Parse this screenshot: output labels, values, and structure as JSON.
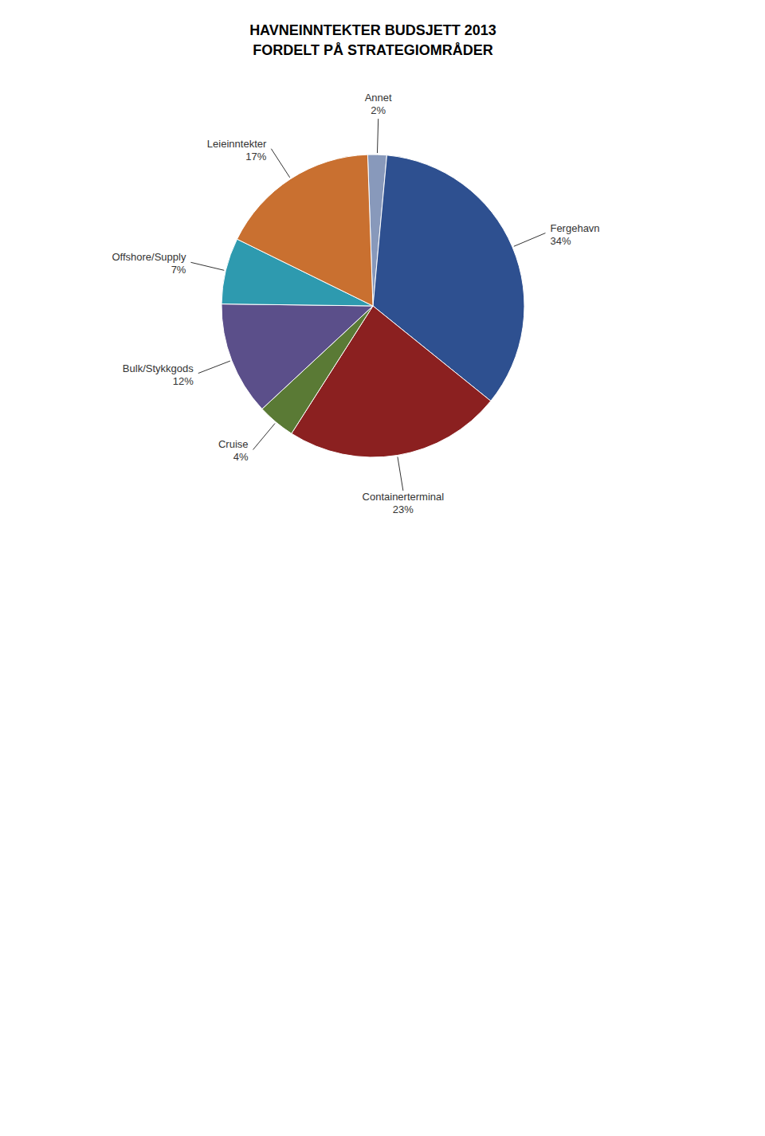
{
  "chart_data": {
    "type": "pie",
    "title": "HAVNEINNTEKTER BUDSJETT 2013",
    "subtitle": "FORDELT PÅ STRATEGIOMRÅDER",
    "categories": [
      "Annet",
      "Fergehavn",
      "Containerterminal",
      "Cruise",
      "Bulk/Stykkgods",
      "Offshore/Supply",
      "Leieinntekter"
    ],
    "values": [
      2,
      34,
      23,
      4,
      12,
      7,
      17
    ],
    "value_labels": [
      "2%",
      "34%",
      "23%",
      "4%",
      "12%",
      "7%",
      "17%"
    ],
    "colors": [
      "#8899BB",
      "#2E5090",
      "#8B2020",
      "#5A7A35",
      "#5B4F8A",
      "#2E9AAF",
      "#C97030"
    ],
    "data_labels": true
  }
}
